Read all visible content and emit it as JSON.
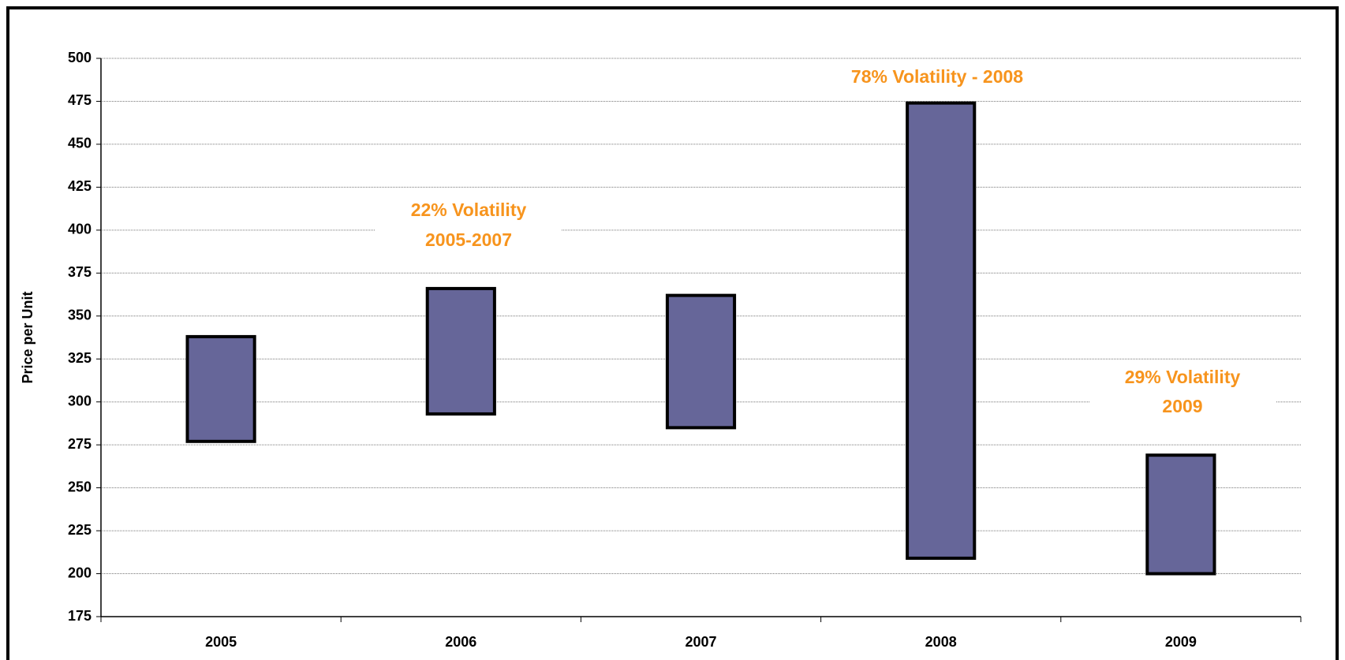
{
  "chart_data": {
    "type": "floating-bar",
    "y_label": "Price per Unit",
    "categories": [
      "2005",
      "2006",
      "2007",
      "2008",
      "2009"
    ],
    "values": [
      [
        277,
        338
      ],
      [
        293,
        366
      ],
      [
        285,
        362
      ],
      [
        209,
        474
      ],
      [
        200,
        269
      ]
    ],
    "color": "#666699",
    "ylim": [
      175,
      500
    ],
    "yticks": [
      175,
      200,
      225,
      250,
      275,
      300,
      325,
      350,
      375,
      400,
      425,
      450,
      475,
      500
    ],
    "grid": true,
    "annotations": [
      [
        "22% Volatility",
        "2005-2007"
      ],
      [
        "78% Volatility - 2008"
      ],
      [
        "29% Volatility",
        "2009"
      ]
    ]
  }
}
